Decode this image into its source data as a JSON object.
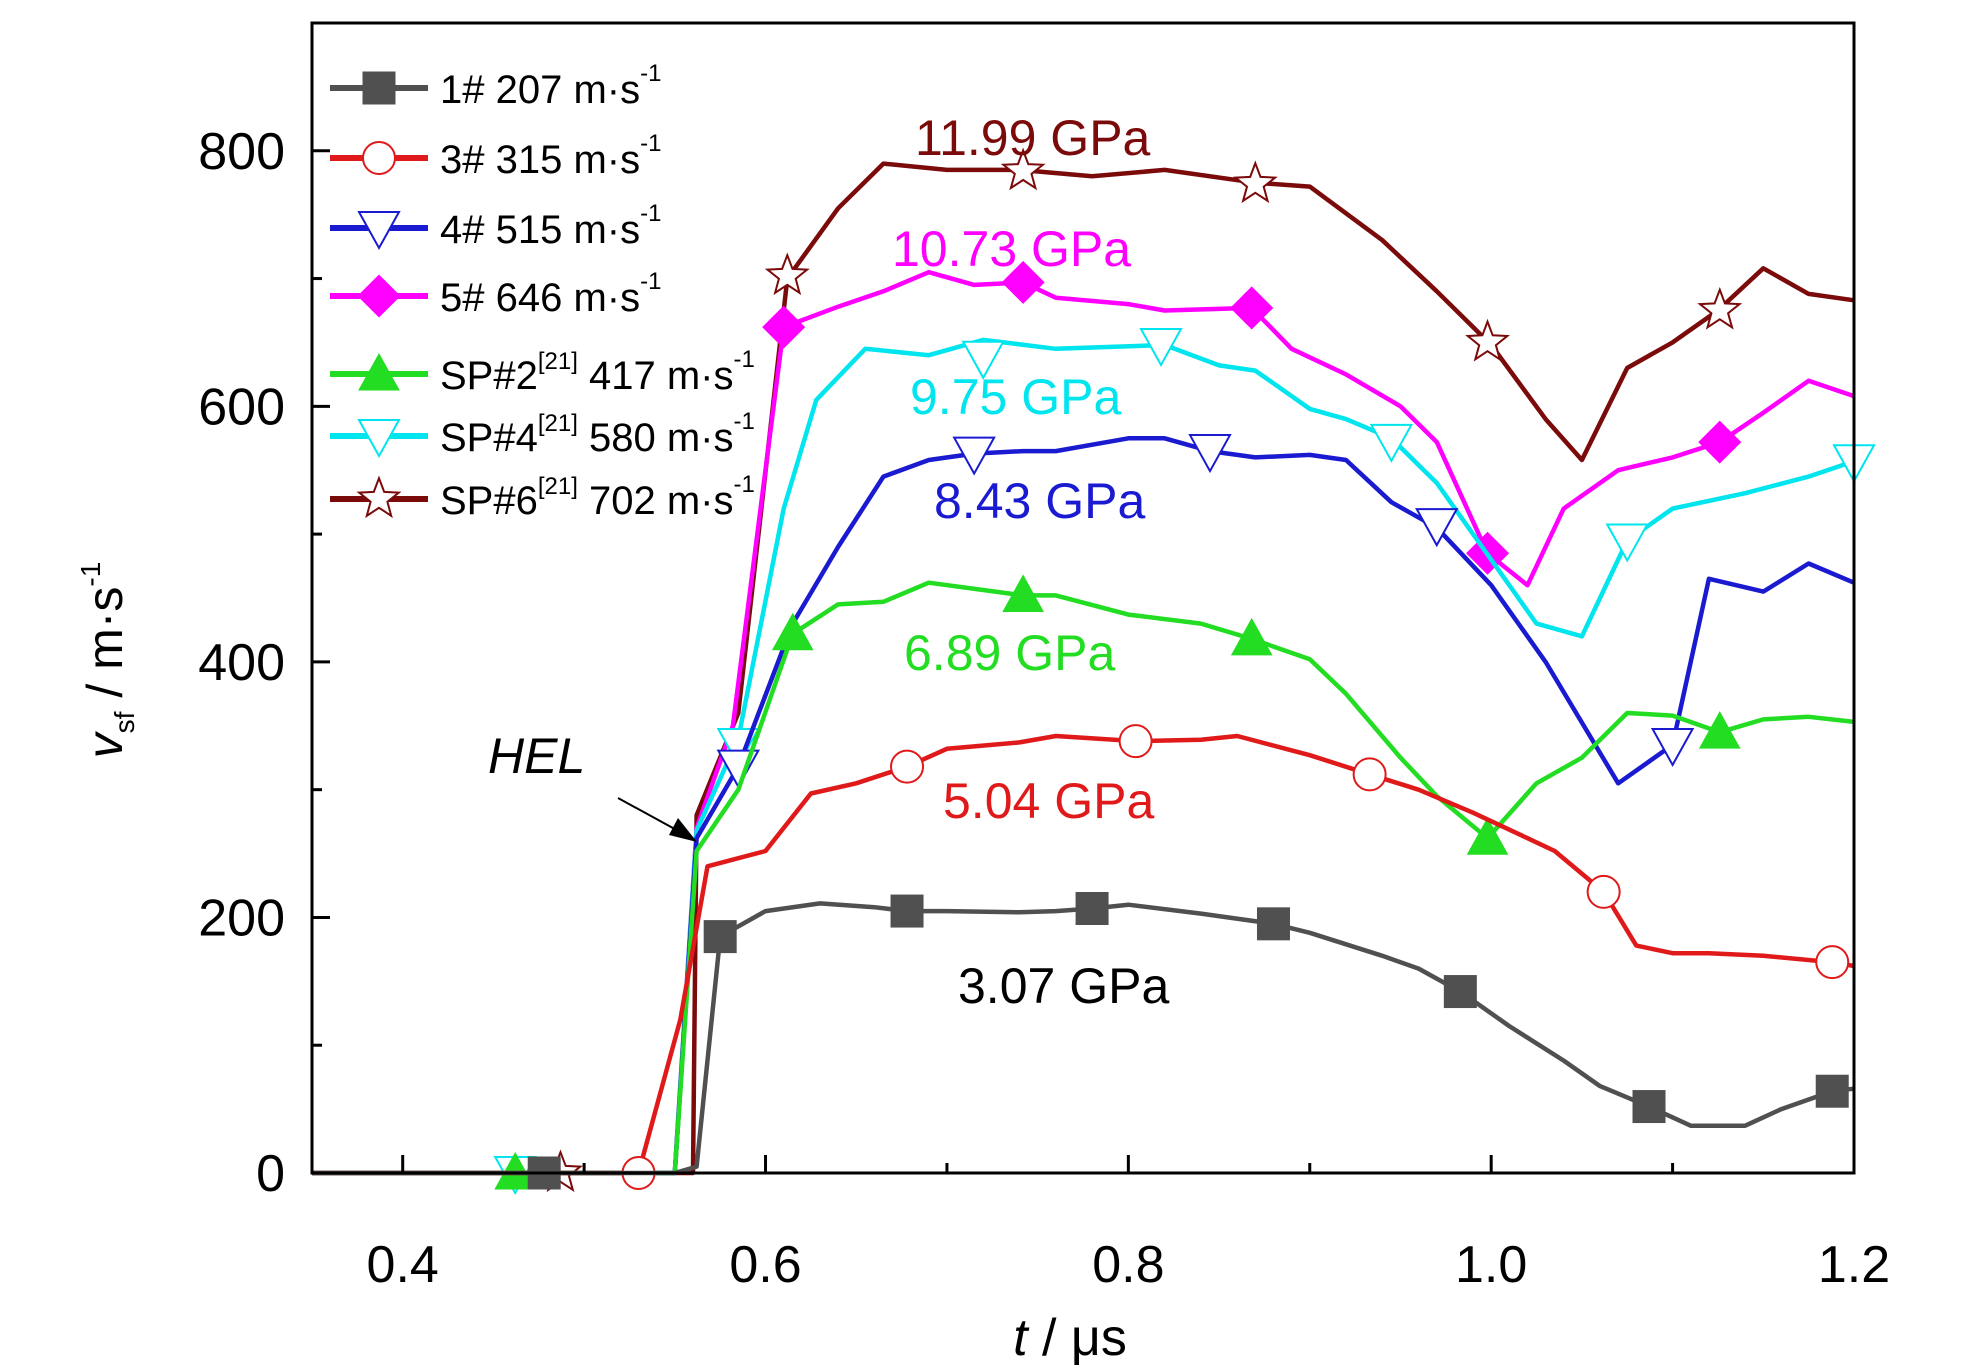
{
  "chart_data": {
    "type": "line",
    "xlabel": "t / μs",
    "ylabel": "v_sf / m·s^-1",
    "xlim": [
      0.35,
      1.2
    ],
    "ylim": [
      0,
      900
    ],
    "xticks": [
      0.4,
      0.6,
      0.8,
      1.0,
      1.2
    ],
    "xtick_labels": [
      "0.4",
      "0.6",
      "0.8",
      "1.0",
      "1.2"
    ],
    "yticks": [
      0,
      200,
      400,
      600,
      800
    ],
    "ytick_labels": [
      "0",
      "200",
      "400",
      "600",
      "800"
    ],
    "grid": false,
    "legend_position": "top-left",
    "legend_texts": {
      "s1": "1# 207 m·s",
      "s2": "3# 315 m·s",
      "s3": "4# 515 m·s",
      "s4": "5# 646 m·s",
      "s5": "SP#2",
      "s6": "SP#4",
      "s7": "SP#6",
      "ref": "[21]",
      "exp": "-1",
      "s5_tail": " 417 m·s",
      "s6_tail": " 580 m·s",
      "s7_tail": " 702 m·s"
    },
    "annotations": {
      "hel": "HEL",
      "p1": "3.07 GPa",
      "p2": "5.04 GPa",
      "p3": "6.89 GPa",
      "p4": "8.43 GPa",
      "p5": "9.75 GPa",
      "p6": "10.73 GPa",
      "p7": "11.99 GPa"
    },
    "series": [
      {
        "id": "s7",
        "name": "SP#6[21] 702 m·s-1",
        "color": "#7b0a0a",
        "marker": "star",
        "points": [
          [
            0.35,
            0
          ],
          [
            0.4,
            0
          ],
          [
            0.45,
            0
          ],
          [
            0.487,
            0
          ],
          [
            0.52,
            0
          ],
          [
            0.55,
            0
          ],
          [
            0.56,
            0
          ],
          [
            0.562,
            280
          ],
          [
            0.585,
            360
          ],
          [
            0.612,
            700
          ],
          [
            0.64,
            755
          ],
          [
            0.665,
            790
          ],
          [
            0.7,
            785
          ],
          [
            0.74,
            785
          ],
          [
            0.78,
            780
          ],
          [
            0.82,
            785
          ],
          [
            0.87,
            775
          ],
          [
            0.9,
            772
          ],
          [
            0.94,
            730
          ],
          [
            0.97,
            690
          ],
          [
            1.0,
            648
          ],
          [
            1.03,
            590
          ],
          [
            1.05,
            558
          ],
          [
            1.075,
            630
          ],
          [
            1.1,
            650
          ],
          [
            1.125,
            675
          ],
          [
            1.15,
            708
          ],
          [
            1.175,
            688
          ],
          [
            1.2,
            683
          ]
        ],
        "marker_points": [
          [
            0.487,
            0
          ],
          [
            0.612,
            702
          ],
          [
            0.742,
            784
          ],
          [
            0.87,
            774
          ],
          [
            0.998,
            650
          ],
          [
            1.126,
            675
          ]
        ]
      },
      {
        "id": "s4",
        "name": "5# 646 m·s-1",
        "color": "#ff00ff",
        "marker": "diamond",
        "points": [
          [
            0.35,
            0
          ],
          [
            0.4,
            0
          ],
          [
            0.45,
            0
          ],
          [
            0.465,
            0
          ],
          [
            0.52,
            0
          ],
          [
            0.55,
            0
          ],
          [
            0.562,
            270
          ],
          [
            0.582,
            350
          ],
          [
            0.61,
            662
          ],
          [
            0.64,
            678
          ],
          [
            0.665,
            690
          ],
          [
            0.69,
            705
          ],
          [
            0.715,
            695
          ],
          [
            0.742,
            697
          ],
          [
            0.76,
            685
          ],
          [
            0.8,
            680
          ],
          [
            0.82,
            675
          ],
          [
            0.868,
            677
          ],
          [
            0.89,
            645
          ],
          [
            0.92,
            625
          ],
          [
            0.95,
            600
          ],
          [
            0.97,
            572
          ],
          [
            0.998,
            485
          ],
          [
            1.02,
            460
          ],
          [
            1.04,
            520
          ],
          [
            1.07,
            550
          ],
          [
            1.1,
            560
          ],
          [
            1.126,
            572
          ],
          [
            1.15,
            595
          ],
          [
            1.175,
            620
          ],
          [
            1.2,
            608
          ]
        ],
        "marker_points": [
          [
            0.61,
            662
          ],
          [
            0.742,
            697
          ],
          [
            0.868,
            677
          ],
          [
            0.998,
            485
          ],
          [
            1.126,
            572
          ]
        ]
      },
      {
        "id": "s6",
        "name": "SP#4[21] 580 m·s-1",
        "color": "#00e5ee",
        "marker": "tri-down-open",
        "points": [
          [
            0.35,
            0
          ],
          [
            0.4,
            0
          ],
          [
            0.45,
            0
          ],
          [
            0.462,
            0
          ],
          [
            0.52,
            0
          ],
          [
            0.55,
            0
          ],
          [
            0.562,
            268
          ],
          [
            0.585,
            340
          ],
          [
            0.61,
            520
          ],
          [
            0.628,
            605
          ],
          [
            0.655,
            645
          ],
          [
            0.69,
            640
          ],
          [
            0.72,
            652
          ],
          [
            0.76,
            645
          ],
          [
            0.82,
            648
          ],
          [
            0.85,
            632
          ],
          [
            0.87,
            628
          ],
          [
            0.9,
            598
          ],
          [
            0.92,
            590
          ],
          [
            0.945,
            575
          ],
          [
            0.97,
            540
          ],
          [
            1.0,
            480
          ],
          [
            1.025,
            430
          ],
          [
            1.05,
            420
          ],
          [
            1.075,
            495
          ],
          [
            1.1,
            520
          ],
          [
            1.14,
            532
          ],
          [
            1.175,
            545
          ],
          [
            1.2,
            557
          ]
        ],
        "marker_points": [
          [
            0.462,
            0
          ],
          [
            0.585,
            335
          ],
          [
            0.72,
            638
          ],
          [
            0.818,
            648
          ],
          [
            0.945,
            573
          ],
          [
            1.075,
            495
          ],
          [
            1.2,
            557
          ]
        ]
      },
      {
        "id": "s3",
        "name": "4# 515 m·s-1",
        "color": "#1a1ad0",
        "marker": "tri-down-open",
        "points": [
          [
            0.35,
            0
          ],
          [
            0.4,
            0
          ],
          [
            0.45,
            0
          ],
          [
            0.465,
            0
          ],
          [
            0.52,
            0
          ],
          [
            0.55,
            0
          ],
          [
            0.562,
            262
          ],
          [
            0.585,
            318
          ],
          [
            0.615,
            430
          ],
          [
            0.64,
            490
          ],
          [
            0.665,
            545
          ],
          [
            0.69,
            558
          ],
          [
            0.715,
            563
          ],
          [
            0.742,
            565
          ],
          [
            0.76,
            565
          ],
          [
            0.8,
            575
          ],
          [
            0.82,
            575
          ],
          [
            0.845,
            565
          ],
          [
            0.87,
            560
          ],
          [
            0.9,
            562
          ],
          [
            0.92,
            558
          ],
          [
            0.945,
            525
          ],
          [
            0.97,
            505
          ],
          [
            1.0,
            460
          ],
          [
            1.03,
            400
          ],
          [
            1.07,
            305
          ],
          [
            1.1,
            335
          ],
          [
            1.12,
            465
          ],
          [
            1.15,
            455
          ],
          [
            1.175,
            477
          ],
          [
            1.2,
            462
          ]
        ],
        "marker_points": [
          [
            0.585,
            318
          ],
          [
            0.715,
            563
          ],
          [
            0.845,
            565
          ],
          [
            0.97,
            507
          ],
          [
            1.1,
            335
          ]
        ]
      },
      {
        "id": "s5",
        "name": "SP#2[21] 417 m·s-1",
        "color": "#22dd22",
        "marker": "tri-up",
        "points": [
          [
            0.35,
            0
          ],
          [
            0.4,
            0
          ],
          [
            0.45,
            0
          ],
          [
            0.462,
            0
          ],
          [
            0.52,
            0
          ],
          [
            0.55,
            0
          ],
          [
            0.562,
            252
          ],
          [
            0.585,
            300
          ],
          [
            0.615,
            422
          ],
          [
            0.64,
            445
          ],
          [
            0.665,
            447
          ],
          [
            0.69,
            462
          ],
          [
            0.742,
            452
          ],
          [
            0.76,
            452
          ],
          [
            0.8,
            437
          ],
          [
            0.84,
            430
          ],
          [
            0.868,
            418
          ],
          [
            0.9,
            402
          ],
          [
            0.92,
            375
          ],
          [
            0.95,
            325
          ],
          [
            0.97,
            295
          ],
          [
            0.998,
            262
          ],
          [
            1.025,
            305
          ],
          [
            1.05,
            325
          ],
          [
            1.075,
            360
          ],
          [
            1.1,
            358
          ],
          [
            1.126,
            345
          ],
          [
            1.15,
            355
          ],
          [
            1.175,
            357
          ],
          [
            1.2,
            353
          ]
        ],
        "marker_points": [
          [
            0.462,
            0
          ],
          [
            0.615,
            422
          ],
          [
            0.742,
            452
          ],
          [
            0.868,
            418
          ],
          [
            0.998,
            262
          ],
          [
            1.126,
            345
          ]
        ]
      },
      {
        "id": "s2",
        "name": "3# 315 m·s-1",
        "color": "#e01a1a",
        "marker": "circle-open",
        "points": [
          [
            0.35,
            0
          ],
          [
            0.4,
            0
          ],
          [
            0.45,
            0
          ],
          [
            0.5,
            0
          ],
          [
            0.53,
            0
          ],
          [
            0.553,
            120
          ],
          [
            0.568,
            240
          ],
          [
            0.6,
            252
          ],
          [
            0.625,
            297
          ],
          [
            0.65,
            305
          ],
          [
            0.678,
            318
          ],
          [
            0.7,
            332
          ],
          [
            0.74,
            337
          ],
          [
            0.76,
            342
          ],
          [
            0.804,
            338
          ],
          [
            0.84,
            339
          ],
          [
            0.86,
            342
          ],
          [
            0.9,
            327
          ],
          [
            0.933,
            312
          ],
          [
            0.96,
            300
          ],
          [
            0.99,
            282
          ],
          [
            1.02,
            262
          ],
          [
            1.035,
            252
          ],
          [
            1.062,
            220
          ],
          [
            1.08,
            178
          ],
          [
            1.1,
            172
          ],
          [
            1.12,
            172
          ],
          [
            1.15,
            170
          ],
          [
            1.188,
            165
          ],
          [
            1.2,
            162
          ]
        ],
        "marker_points": [
          [
            0.53,
            0
          ],
          [
            0.678,
            318
          ],
          [
            0.804,
            338
          ],
          [
            0.933,
            312
          ],
          [
            1.062,
            220
          ],
          [
            1.188,
            165
          ]
        ]
      },
      {
        "id": "s1",
        "name": "1# 207 m·s-1",
        "color": "#505050",
        "marker": "square",
        "points": [
          [
            0.35,
            0
          ],
          [
            0.4,
            0
          ],
          [
            0.45,
            0
          ],
          [
            0.478,
            0
          ],
          [
            0.52,
            0
          ],
          [
            0.55,
            0
          ],
          [
            0.562,
            5
          ],
          [
            0.575,
            185
          ],
          [
            0.6,
            205
          ],
          [
            0.63,
            211
          ],
          [
            0.66,
            208
          ],
          [
            0.678,
            205
          ],
          [
            0.7,
            205
          ],
          [
            0.74,
            204
          ],
          [
            0.76,
            205
          ],
          [
            0.78,
            207
          ],
          [
            0.8,
            210
          ],
          [
            0.84,
            203
          ],
          [
            0.88,
            195
          ],
          [
            0.9,
            188
          ],
          [
            0.94,
            170
          ],
          [
            0.96,
            160
          ],
          [
            0.983,
            142
          ],
          [
            1.01,
            115
          ],
          [
            1.04,
            88
          ],
          [
            1.06,
            68
          ],
          [
            1.087,
            52
          ],
          [
            1.11,
            37
          ],
          [
            1.14,
            37
          ],
          [
            1.16,
            50
          ],
          [
            1.188,
            64
          ],
          [
            1.2,
            66
          ]
        ],
        "marker_points": [
          [
            0.478,
            0
          ],
          [
            0.575,
            185
          ],
          [
            0.678,
            205
          ],
          [
            0.78,
            207
          ],
          [
            0.88,
            195
          ],
          [
            0.983,
            142
          ],
          [
            1.087,
            52
          ],
          [
            1.188,
            64
          ]
        ]
      }
    ]
  }
}
